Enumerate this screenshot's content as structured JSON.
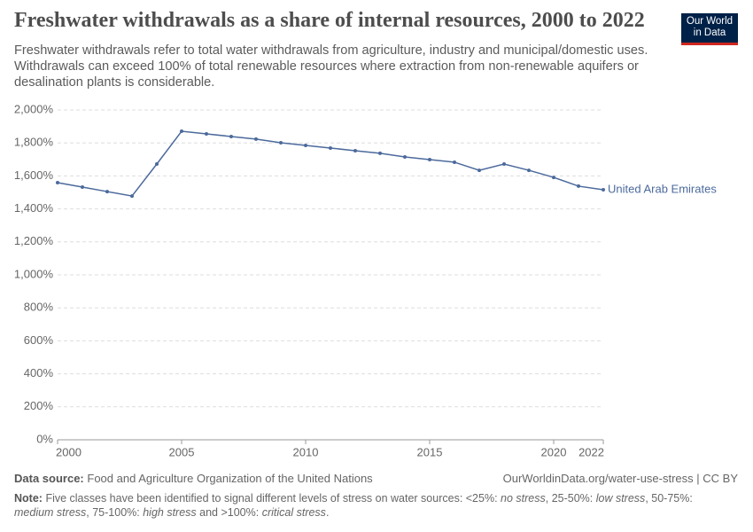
{
  "chart_data": {
    "type": "line",
    "title": "Freshwater withdrawals as a share of internal resources, 2000 to 2022",
    "subtitle": "Freshwater withdrawals refer to total water withdrawals from agriculture, industry and municipal/domestic uses. Withdrawals can exceed 100% of total renewable resources where extraction from non-renewable aquifers or desalination plants is considerable.",
    "x": [
      2000,
      2001,
      2002,
      2003,
      2004,
      2005,
      2006,
      2007,
      2008,
      2009,
      2010,
      2011,
      2012,
      2013,
      2014,
      2015,
      2016,
      2017,
      2018,
      2019,
      2020,
      2021,
      2022
    ],
    "series": [
      {
        "name": "United Arab Emirates",
        "color": "#4c6a9c",
        "values": [
          1559,
          1532,
          1505,
          1478,
          1672,
          1871,
          1855,
          1839,
          1823,
          1801,
          1785,
          1769,
          1753,
          1737,
          1715,
          1699,
          1683,
          1634,
          1672,
          1634,
          1591,
          1538,
          1516
        ]
      }
    ],
    "xlim": [
      2000,
      2022
    ],
    "xticks": [
      2000,
      2005,
      2010,
      2015,
      2020,
      2022
    ],
    "ylim": [
      0,
      2000
    ],
    "yticks": [
      {
        "value": 0,
        "label": "0%"
      },
      {
        "value": 200,
        "label": "200%"
      },
      {
        "value": 400,
        "label": "400%"
      },
      {
        "value": 600,
        "label": "600%"
      },
      {
        "value": 800,
        "label": "800%"
      },
      {
        "value": 1000,
        "label": "1,000%"
      },
      {
        "value": 1200,
        "label": "1,200%"
      },
      {
        "value": 1400,
        "label": "1,400%"
      },
      {
        "value": 1600,
        "label": "1,600%"
      },
      {
        "value": 1800,
        "label": "1,800%"
      },
      {
        "value": 2000,
        "label": "2,000%"
      }
    ],
    "grid": true
  },
  "logo": {
    "line1": "Our World",
    "line2": "in Data"
  },
  "footer": {
    "source_label": "Data source:",
    "source": "Food and Agriculture Organization of the United Nations",
    "url": "OurWorldinData.org/water-use-stress | CC BY",
    "note_label": "Note:",
    "note": [
      {
        "text": "Five classes have been identified to signal different levels of stress on water sources: <25%: ",
        "style": "normal"
      },
      {
        "text": "no stress",
        "style": "italic"
      },
      {
        "text": ", 25-50%: ",
        "style": "normal"
      },
      {
        "text": "low stress",
        "style": "italic"
      },
      {
        "text": ", 50-75%: ",
        "style": "normal"
      },
      {
        "text": "medium stress",
        "style": "italic"
      },
      {
        "text": ", 75-100%: ",
        "style": "normal"
      },
      {
        "text": "high stress",
        "style": "italic"
      },
      {
        "text": " and >100%: ",
        "style": "normal"
      },
      {
        "text": "critical stress",
        "style": "italic"
      },
      {
        "text": ".",
        "style": "normal"
      }
    ]
  }
}
